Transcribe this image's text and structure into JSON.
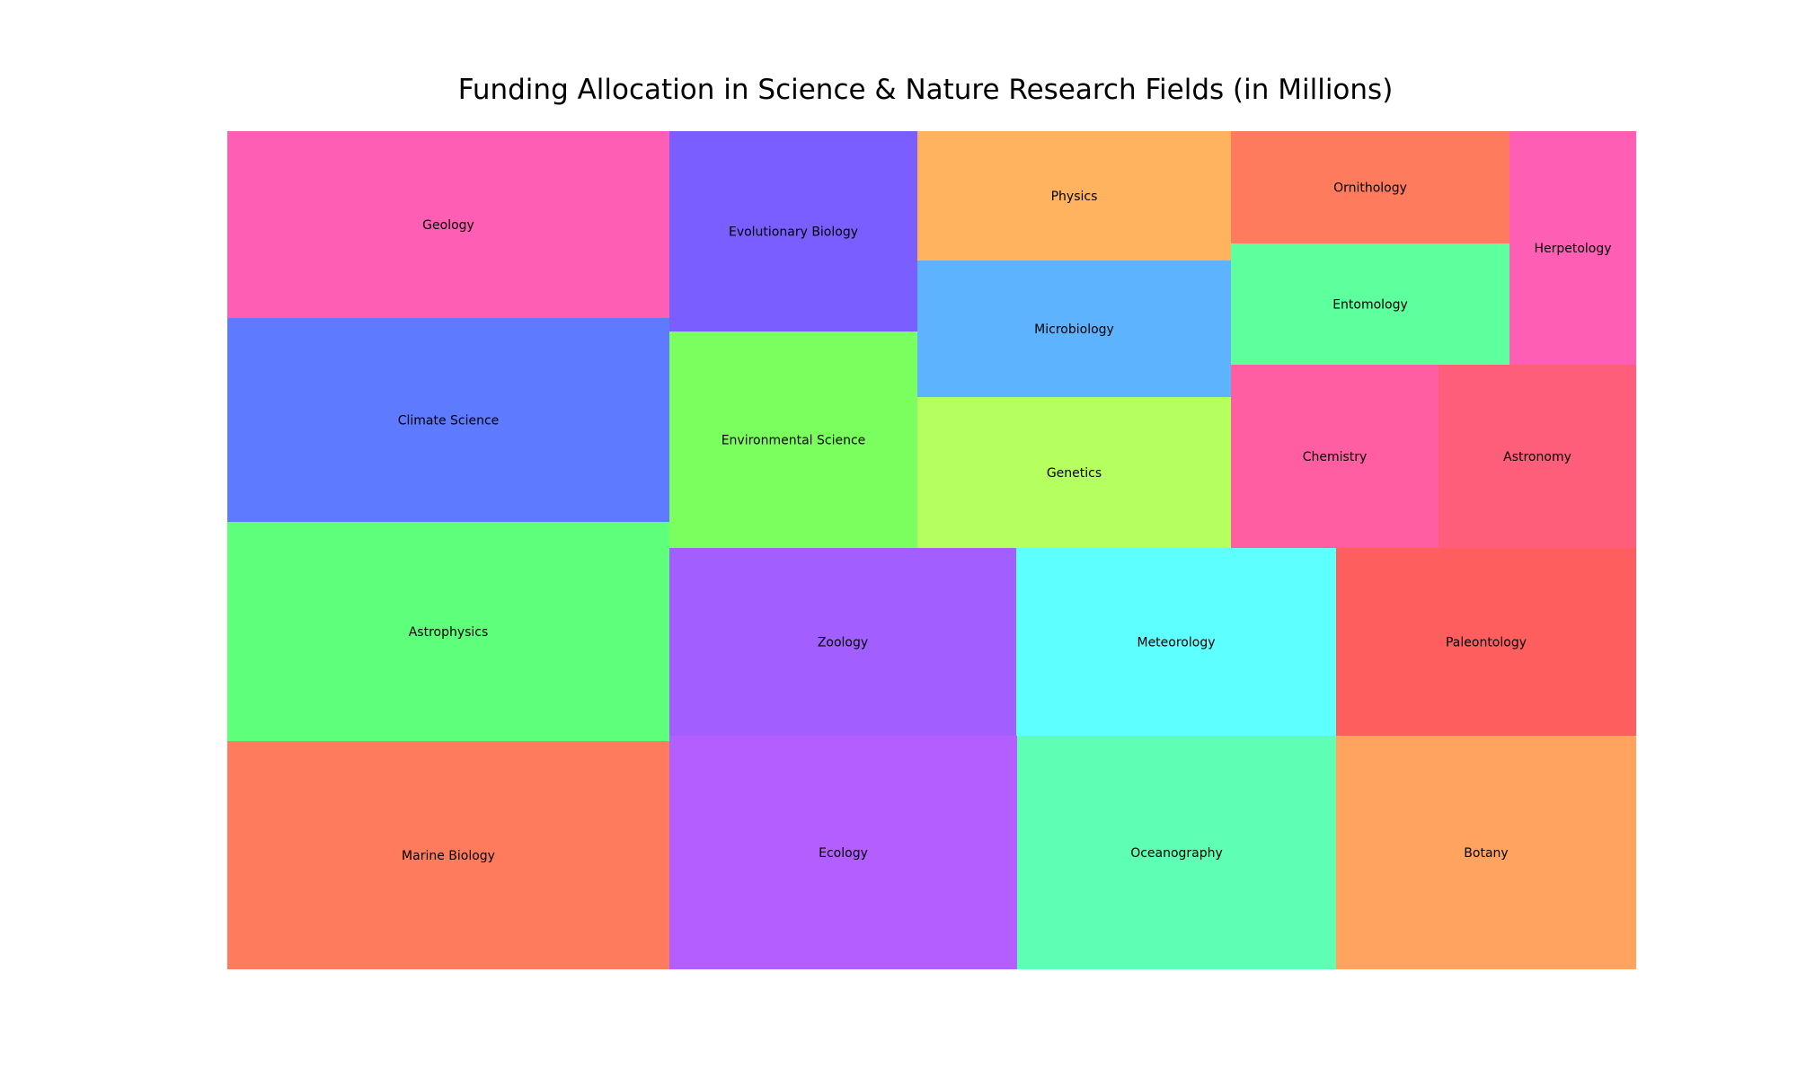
{
  "chart_data": {
    "type": "treemap",
    "title": "Funding Allocation in Science & Nature Research Fields (in Millions)",
    "unit": "millions",
    "items": [
      {
        "label": "Marine Biology",
        "value": 125,
        "color": "#ff7b5e"
      },
      {
        "label": "Astrophysics",
        "value": 119,
        "color": "#5eff7b"
      },
      {
        "label": "Climate Science",
        "value": 111,
        "color": "#5e7bff"
      },
      {
        "label": "Geology",
        "value": 102,
        "color": "#ff5eb5"
      },
      {
        "label": "Ecology",
        "value": 100,
        "color": "#b55eff"
      },
      {
        "label": "Zoology",
        "value": 81,
        "color": "#a35eff"
      },
      {
        "label": "Oceanography",
        "value": 92,
        "color": "#5effb5"
      },
      {
        "label": "Meteorology",
        "value": 75,
        "color": "#5effff"
      },
      {
        "label": "Botany",
        "value": 86,
        "color": "#ffa35e"
      },
      {
        "label": "Paleontology",
        "value": 70,
        "color": "#ff5e5e"
      },
      {
        "label": "Evolutionary Biology",
        "value": 61,
        "color": "#7b5eff"
      },
      {
        "label": "Environmental Science",
        "value": 66,
        "color": "#7bff5e"
      },
      {
        "label": "Physics",
        "value": 50,
        "color": "#ffb35e"
      },
      {
        "label": "Microbiology",
        "value": 53,
        "color": "#5eb3ff"
      },
      {
        "label": "Genetics",
        "value": 58,
        "color": "#b5ff5e"
      },
      {
        "label": "Ornithology",
        "value": 40,
        "color": "#ff7b5e"
      },
      {
        "label": "Entomology",
        "value": 43,
        "color": "#5eff9d"
      },
      {
        "label": "Herpetology",
        "value": 37,
        "color": "#ff5eb5"
      },
      {
        "label": "Chemistry",
        "value": 48,
        "color": "#ff5ea3"
      },
      {
        "label": "Astronomy",
        "value": 45,
        "color": "#ff5e7b"
      }
    ]
  }
}
